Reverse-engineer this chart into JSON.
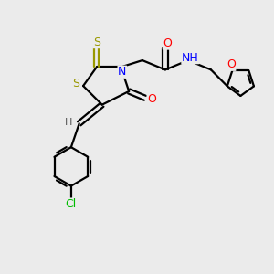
{
  "bg_color": "#ebebeb",
  "atom_colors": {
    "S": "#999900",
    "N": "#0000FF",
    "O": "#FF0000",
    "Cl": "#00BB00",
    "C": "#000000",
    "H": "#555555"
  },
  "lw": 1.6,
  "fontsize": 9
}
